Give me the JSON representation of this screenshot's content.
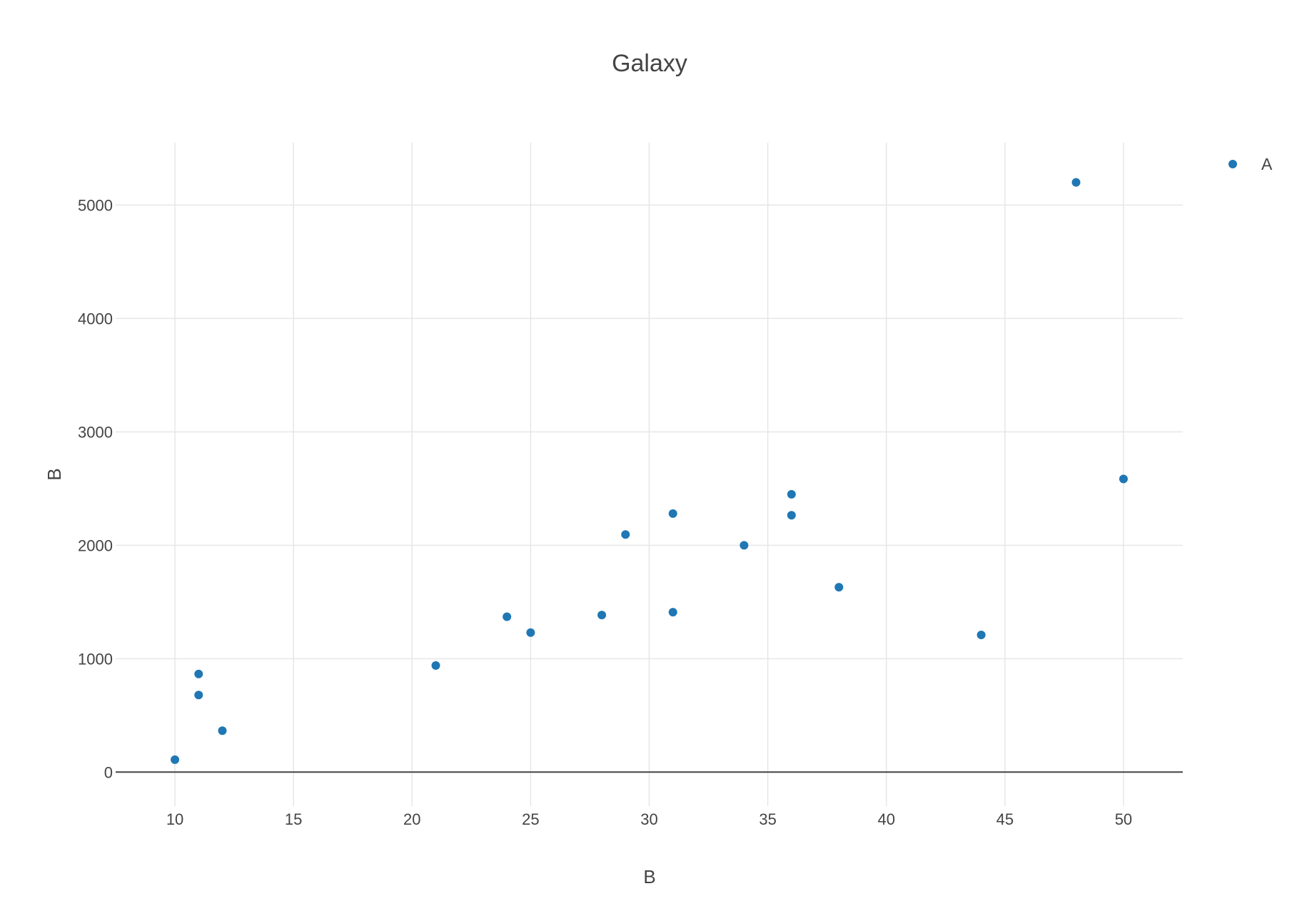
{
  "chart_data": {
    "type": "scatter",
    "title": "Galaxy",
    "xlabel": "B",
    "ylabel": "B",
    "xlim": [
      7.5,
      52.5
    ],
    "ylim": [
      -300,
      5550
    ],
    "x_ticks": [
      10,
      15,
      20,
      25,
      30,
      35,
      40,
      45,
      50
    ],
    "y_ticks": [
      0,
      1000,
      2000,
      3000,
      4000,
      5000
    ],
    "grid": true,
    "legend_position": "top-right",
    "series": [
      {
        "name": "A",
        "color": "#1f77b4",
        "x": [
          10,
          11,
          11,
          12,
          21,
          24,
          25,
          28,
          29,
          31,
          31,
          34,
          36,
          36,
          38,
          44,
          48,
          50
        ],
        "y": [
          110,
          680,
          865,
          365,
          940,
          1370,
          1230,
          1385,
          2095,
          2280,
          1410,
          2000,
          2450,
          2265,
          1630,
          1210,
          5200,
          2585
        ]
      }
    ]
  }
}
